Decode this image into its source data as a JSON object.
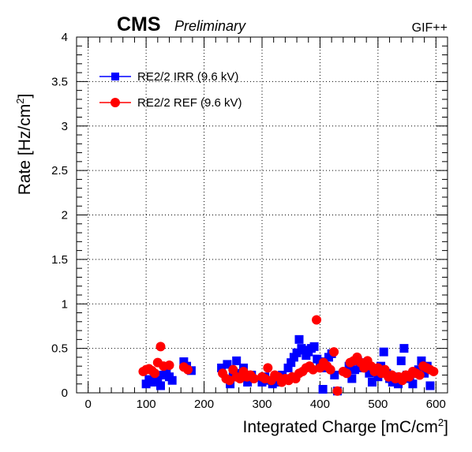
{
  "header": {
    "experiment": "CMS",
    "status": "Preliminary",
    "facility": "GIF++"
  },
  "chart_data": {
    "type": "scatter",
    "xlabel_main": "Integrated Charge [mC/cm",
    "xlabel_sup": "2",
    "xlabel_end": "]",
    "ylabel_main": "Rate [Hz/cm",
    "ylabel_sup": "2",
    "ylabel_end": "]",
    "xlim": [
      -20,
      620
    ],
    "ylim": [
      0,
      4
    ],
    "x_ticks": [
      "0",
      "100",
      "200",
      "300",
      "400",
      "500",
      "600"
    ],
    "y_ticks": [
      "0",
      "0.5",
      "1",
      "1.5",
      "2",
      "2.5",
      "3",
      "3.5",
      "4"
    ],
    "grid": true,
    "legend_position": "top-left",
    "series": [
      {
        "name": "RE2/2 IRR (9.6 kV)",
        "marker": "square",
        "color": "#0000ff",
        "points": [
          [
            100,
            0.1
          ],
          [
            105,
            0.15
          ],
          [
            110,
            0.12
          ],
          [
            115,
            0.18
          ],
          [
            120,
            0.14
          ],
          [
            125,
            0.08
          ],
          [
            130,
            0.2
          ],
          [
            135,
            0.22
          ],
          [
            140,
            0.18
          ],
          [
            145,
            0.14
          ],
          [
            165,
            0.35
          ],
          [
            170,
            0.3
          ],
          [
            178,
            0.25
          ],
          [
            230,
            0.28
          ],
          [
            240,
            0.32
          ],
          [
            245,
            0.1
          ],
          [
            250,
            0.18
          ],
          [
            256,
            0.36
          ],
          [
            262,
            0.22
          ],
          [
            268,
            0.28
          ],
          [
            275,
            0.12
          ],
          [
            282,
            0.2
          ],
          [
            300,
            0.12
          ],
          [
            305,
            0.18
          ],
          [
            310,
            0.14
          ],
          [
            318,
            0.1
          ],
          [
            325,
            0.15
          ],
          [
            330,
            0.12
          ],
          [
            335,
            0.2
          ],
          [
            340,
            0.16
          ],
          [
            345,
            0.28
          ],
          [
            350,
            0.34
          ],
          [
            355,
            0.4
          ],
          [
            360,
            0.45
          ],
          [
            364,
            0.6
          ],
          [
            368,
            0.5
          ],
          [
            372,
            0.48
          ],
          [
            376,
            0.42
          ],
          [
            380,
            0.46
          ],
          [
            385,
            0.5
          ],
          [
            390,
            0.52
          ],
          [
            395,
            0.38
          ],
          [
            400,
            0.35
          ],
          [
            405,
            0.04
          ],
          [
            410,
            0.28
          ],
          [
            415,
            0.4
          ],
          [
            420,
            0.44
          ],
          [
            425,
            0.2
          ],
          [
            430,
            0.02
          ],
          [
            445,
            0.24
          ],
          [
            450,
            0.3
          ],
          [
            455,
            0.16
          ],
          [
            460,
            0.26
          ],
          [
            465,
            0.36
          ],
          [
            470,
            0.34
          ],
          [
            475,
            0.28
          ],
          [
            480,
            0.3
          ],
          [
            485,
            0.22
          ],
          [
            490,
            0.12
          ],
          [
            495,
            0.26
          ],
          [
            500,
            0.18
          ],
          [
            505,
            0.3
          ],
          [
            510,
            0.46
          ],
          [
            515,
            0.22
          ],
          [
            520,
            0.16
          ],
          [
            525,
            0.12
          ],
          [
            530,
            0.18
          ],
          [
            535,
            0.1
          ],
          [
            540,
            0.36
          ],
          [
            545,
            0.5
          ],
          [
            550,
            0.2
          ],
          [
            555,
            0.16
          ],
          [
            560,
            0.1
          ],
          [
            565,
            0.22
          ],
          [
            570,
            0.26
          ],
          [
            575,
            0.36
          ],
          [
            580,
            0.22
          ],
          [
            585,
            0.3
          ],
          [
            590,
            0.08
          ]
        ]
      },
      {
        "name": "RE2/2 REF (9.6 kV)",
        "marker": "circle",
        "color": "#ff0000",
        "points": [
          [
            95,
            0.24
          ],
          [
            100,
            0.26
          ],
          [
            105,
            0.27
          ],
          [
            110,
            0.25
          ],
          [
            115,
            0.22
          ],
          [
            120,
            0.34
          ],
          [
            125,
            0.52
          ],
          [
            130,
            0.3
          ],
          [
            140,
            0.31
          ],
          [
            165,
            0.29
          ],
          [
            172,
            0.26
          ],
          [
            232,
            0.22
          ],
          [
            238,
            0.16
          ],
          [
            244,
            0.14
          ],
          [
            250,
            0.26
          ],
          [
            256,
            0.18
          ],
          [
            262,
            0.16
          ],
          [
            268,
            0.24
          ],
          [
            274,
            0.18
          ],
          [
            280,
            0.2
          ],
          [
            286,
            0.16
          ],
          [
            300,
            0.18
          ],
          [
            305,
            0.16
          ],
          [
            310,
            0.28
          ],
          [
            316,
            0.14
          ],
          [
            322,
            0.2
          ],
          [
            328,
            0.18
          ],
          [
            334,
            0.12
          ],
          [
            340,
            0.16
          ],
          [
            346,
            0.14
          ],
          [
            352,
            0.18
          ],
          [
            358,
            0.16
          ],
          [
            364,
            0.22
          ],
          [
            370,
            0.24
          ],
          [
            376,
            0.28
          ],
          [
            382,
            0.3
          ],
          [
            388,
            0.26
          ],
          [
            394,
            0.82
          ],
          [
            400,
            0.28
          ],
          [
            406,
            0.34
          ],
          [
            412,
            0.3
          ],
          [
            418,
            0.26
          ],
          [
            424,
            0.46
          ],
          [
            430,
            0.02
          ],
          [
            440,
            0.24
          ],
          [
            446,
            0.22
          ],
          [
            452,
            0.34
          ],
          [
            458,
            0.36
          ],
          [
            464,
            0.4
          ],
          [
            470,
            0.34
          ],
          [
            476,
            0.28
          ],
          [
            482,
            0.36
          ],
          [
            488,
            0.3
          ],
          [
            494,
            0.24
          ],
          [
            500,
            0.28
          ],
          [
            506,
            0.22
          ],
          [
            512,
            0.26
          ],
          [
            518,
            0.18
          ],
          [
            524,
            0.2
          ],
          [
            530,
            0.16
          ],
          [
            536,
            0.18
          ],
          [
            542,
            0.14
          ],
          [
            548,
            0.2
          ],
          [
            554,
            0.18
          ],
          [
            560,
            0.24
          ],
          [
            566,
            0.22
          ],
          [
            572,
            0.2
          ],
          [
            578,
            0.3
          ],
          [
            584,
            0.28
          ],
          [
            590,
            0.26
          ],
          [
            596,
            0.24
          ]
        ]
      }
    ]
  }
}
